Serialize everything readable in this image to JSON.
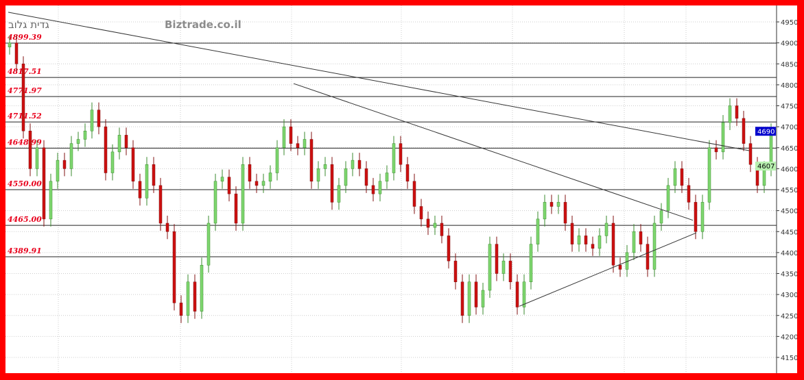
{
  "chart_data": {
    "type": "candlestick",
    "title": "גדית גלוב",
    "watermark": "Biztrade.co.il",
    "ylim": [
      4130,
      4970
    ],
    "yticks": [
      4150,
      4200,
      4250,
      4300,
      4350,
      4400,
      4450,
      4500,
      4550,
      4600,
      4650,
      4700,
      4750,
      4800,
      4850,
      4900,
      4950
    ],
    "grid": true,
    "close": [
      4900,
      4850,
      4690,
      4600,
      4650,
      4480,
      4570,
      4620,
      4600,
      4660,
      4670,
      4690,
      4740,
      4700,
      4590,
      4640,
      4680,
      4650,
      4570,
      4530,
      4610,
      4560,
      4470,
      4450,
      4280,
      4250,
      4330,
      4260,
      4370,
      4470,
      4570,
      4580,
      4540,
      4470,
      4610,
      4570,
      4560,
      4570,
      4590,
      4650,
      4700,
      4660,
      4650,
      4670,
      4570,
      4600,
      4610,
      4520,
      4560,
      4600,
      4620,
      4600,
      4560,
      4540,
      4570,
      4590,
      4660,
      4610,
      4570,
      4510,
      4480,
      4460,
      4470,
      4440,
      4380,
      4330,
      4250,
      4330,
      4270,
      4310,
      4420,
      4350,
      4380,
      4330,
      4270,
      4330,
      4420,
      4480,
      4520,
      4510,
      4520,
      4470,
      4420,
      4440,
      4420,
      4410,
      4440,
      4470,
      4370,
      4360,
      4400,
      4450,
      4420,
      4360,
      4470,
      4500,
      4560,
      4600,
      4560,
      4520,
      4450,
      4520,
      4650,
      4640,
      4710,
      4750,
      4720,
      4660,
      4610,
      4560,
      4600,
      4690
    ],
    "levels": [
      {
        "value": 4899.39,
        "label": "4899.39"
      },
      {
        "value": 4817.51,
        "label": "4817.51"
      },
      {
        "value": 4771.97,
        "label": "4771.97"
      },
      {
        "value": 4711.52,
        "label": "4711.52"
      },
      {
        "value": 4648.99,
        "label": "4648.99"
      },
      {
        "value": 4550.0,
        "label": "4550.00"
      },
      {
        "value": 4465.0,
        "label": "4465.00"
      },
      {
        "value": 4389.91,
        "label": "4389.91"
      }
    ],
    "trendlines": [
      {
        "from": [
          0,
          4973
        ],
        "to": [
          108,
          4643
        ]
      },
      {
        "from": [
          41.6,
          4803
        ],
        "to": [
          99.8,
          4477
        ]
      },
      {
        "from": [
          74.5,
          4272
        ],
        "to": [
          100.3,
          4447
        ]
      }
    ],
    "markers": [
      {
        "value": 4690,
        "label": "4690",
        "color": "#0000cc",
        "text_color": "#ffffff"
      },
      {
        "value": 4607,
        "label": "4607",
        "color": "#b8f0b0",
        "text_color": "#000000"
      }
    ],
    "colors": {
      "up": "#7ed66f",
      "down": "#cc1010",
      "frame": "#ff0000"
    }
  }
}
